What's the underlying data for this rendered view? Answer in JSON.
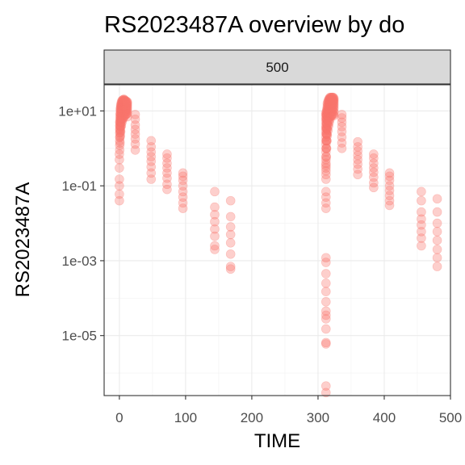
{
  "chart_data": {
    "type": "scatter",
    "title": "RS2023487A overview by do",
    "xlabel": "TIME",
    "ylabel": "RS2023487A",
    "facet_label": "500",
    "x_ticks": [
      0,
      100,
      200,
      300,
      400,
      500
    ],
    "x_tick_labels": [
      "0",
      "100",
      "200",
      "300",
      "400",
      "500"
    ],
    "xlim": [
      -23,
      500
    ],
    "y_scale": "log10",
    "y_ticks": [
      10,
      0.1,
      0.001,
      1e-05
    ],
    "y_tick_labels": [
      "1e+01",
      "1e-01",
      "1e-03",
      "1e-05"
    ],
    "ylim": [
      2.5e-07,
      50
    ],
    "point_color": "#f8766d",
    "point_alpha": 0.35,
    "grid": true,
    "legend": "none",
    "x": [
      0,
      0,
      0,
      0,
      0,
      0,
      0,
      0.5,
      0.5,
      0.5,
      0.5,
      0.5,
      0.5,
      0.5,
      0.5,
      1,
      1,
      1,
      1,
      1,
      1,
      1,
      1,
      1.5,
      1.5,
      1.5,
      1.5,
      1.5,
      1.5,
      1.5,
      1.5,
      1.5,
      2,
      2,
      2,
      2,
      2,
      2,
      2,
      2,
      2,
      2,
      3,
      3,
      3,
      3,
      3,
      3,
      3,
      3,
      3,
      3,
      4,
      4,
      4,
      4,
      4,
      4,
      4,
      4,
      4,
      4,
      5,
      5,
      5,
      5,
      5,
      5,
      5,
      5,
      5,
      5,
      6,
      6,
      6,
      6,
      6,
      6,
      6,
      6,
      6,
      6,
      7,
      7,
      7,
      7,
      7,
      7,
      7,
      7,
      7,
      7,
      8,
      8,
      8,
      8,
      8,
      8,
      8,
      8,
      8,
      9,
      9,
      9,
      9,
      9,
      9,
      9,
      9,
      10,
      10,
      10,
      10,
      10,
      10,
      10,
      10,
      11,
      11,
      11,
      11,
      11,
      11,
      11,
      12,
      12,
      12,
      12,
      12,
      12,
      12,
      12,
      24,
      24,
      24,
      24,
      24,
      24,
      24,
      24,
      48,
      48,
      48,
      48,
      48,
      48,
      48,
      48,
      72,
      72,
      72,
      72,
      72,
      72,
      72,
      72,
      96,
      96,
      96,
      96,
      96,
      96,
      96,
      96,
      144,
      144,
      144,
      144,
      144,
      144,
      144,
      144,
      168,
      168,
      168,
      168,
      168,
      168,
      168,
      168,
      312,
      312,
      312,
      312,
      312,
      312,
      312,
      312,
      312,
      312,
      312,
      312,
      312,
      312,
      312,
      312,
      312,
      312,
      312,
      312,
      312,
      312,
      312,
      312,
      312,
      312,
      312,
      312,
      312,
      312,
      312,
      312,
      312,
      312,
      312,
      312,
      312,
      312,
      312,
      312,
      312.5,
      312.5,
      312.5,
      312.5,
      312.5,
      312.5,
      312.5,
      312.5,
      313,
      313,
      313,
      313,
      313,
      313,
      313,
      313,
      313.5,
      313.5,
      313.5,
      313.5,
      313.5,
      313.5,
      313.5,
      313.5,
      314,
      314,
      314,
      314,
      314,
      314,
      314,
      314,
      314,
      315,
      315,
      315,
      315,
      315,
      315,
      315,
      315,
      315,
      316,
      316,
      316,
      316,
      316,
      316,
      316,
      316,
      316,
      317,
      317,
      317,
      317,
      317,
      317,
      317,
      317,
      317,
      318,
      318,
      318,
      318,
      318,
      318,
      318,
      318,
      318,
      319,
      319,
      319,
      319,
      319,
      319,
      319,
      319,
      320,
      320,
      320,
      320,
      320,
      320,
      320,
      320,
      321,
      321,
      321,
      321,
      321,
      321,
      321,
      321,
      322,
      322,
      322,
      322,
      322,
      322,
      322,
      322,
      323,
      323,
      323,
      323,
      323,
      323,
      323,
      323,
      324,
      324,
      324,
      324,
      324,
      324,
      324,
      324,
      336,
      336,
      336,
      336,
      336,
      336,
      336,
      336,
      360,
      360,
      360,
      360,
      360,
      360,
      360,
      360,
      384,
      384,
      384,
      384,
      384,
      384,
      384,
      384,
      408,
      408,
      408,
      408,
      408,
      408,
      408,
      408,
      456,
      456,
      456,
      456,
      456,
      456,
      456,
      456,
      480,
      480,
      480,
      480,
      480,
      480,
      480,
      480
    ],
    "y": [
      0.04,
      0.06,
      0.1,
      0.15,
      0.3,
      0.5,
      0.7,
      0.9,
      1.2,
      1.6,
      2,
      2.6,
      3.2,
      4,
      5,
      1.4,
      2,
      2.6,
      3.4,
      4.2,
      5.2,
      6.4,
      8,
      2.2,
      3,
      3.8,
      4.8,
      5.8,
      7,
      8.5,
      10,
      11.5,
      2.8,
      3.8,
      4.8,
      6,
      7.2,
      8.6,
      10,
      11.5,
      13,
      14.5,
      4,
      5.2,
      6.5,
      8,
      9.5,
      11,
      12.5,
      14,
      15.5,
      17,
      5,
      6.4,
      8,
      9.6,
      11.2,
      12.8,
      14.4,
      16,
      17.5,
      19,
      6,
      7.5,
      9,
      10.5,
      12,
      13.5,
      15,
      16.5,
      18,
      19.5,
      6.5,
      8,
      9.5,
      11,
      12.5,
      14,
      15.5,
      17,
      18.5,
      20,
      7,
      8.5,
      10,
      11.5,
      13,
      14.5,
      16,
      17.5,
      19,
      20.5,
      7.5,
      9,
      10.5,
      12,
      13.5,
      15,
      16.5,
      18,
      19.5,
      8,
      9.5,
      11,
      12.5,
      14,
      15.5,
      17,
      18.5,
      8,
      9.5,
      11,
      12.5,
      14,
      15.5,
      17,
      18.5,
      8.5,
      10,
      11.5,
      13,
      14.5,
      16,
      17.5,
      7,
      8.5,
      10,
      11.5,
      13,
      14.5,
      16,
      17.5,
      0.9,
      1.3,
      1.8,
      2.4,
      3.2,
      4.2,
      6,
      8,
      0.15,
      0.22,
      0.32,
      0.45,
      0.6,
      0.8,
      1.1,
      1.6,
      0.08,
      0.11,
      0.16,
      0.22,
      0.3,
      0.4,
      0.55,
      0.7,
      0.025,
      0.035,
      0.05,
      0.07,
      0.1,
      0.14,
      0.18,
      0.22,
      0.002,
      0.0025,
      0.0045,
      0.007,
      0.011,
      0.017,
      0.027,
      0.07,
      0.0006,
      0.0007,
      0.0015,
      0.003,
      0.005,
      0.008,
      0.015,
      0.04,
      3e-07,
      4.5e-07,
      6e-06,
      6.5e-06,
      1.5e-05,
      2.8e-05,
      3.5e-05,
      4.5e-05,
      8e-05,
      0.00015,
      0.00025,
      0.00045,
      0.0009,
      0.0012,
      0.025,
      0.035,
      0.05,
      0.07,
      0.15,
      0.2,
      0.25,
      0.3,
      0.35,
      0.4,
      0.5,
      0.6,
      0.8,
      1,
      1.3,
      1.6,
      2,
      2.5,
      3,
      3.5,
      4,
      5,
      6,
      7,
      8,
      9,
      0.6,
      1,
      1.6,
      2.4,
      3.4,
      4.5,
      6,
      8,
      1,
      1.6,
      2.4,
      3.4,
      4.6,
      6,
      7.8,
      10,
      1.6,
      2.4,
      3.4,
      4.6,
      6,
      7.6,
      9.4,
      11.5,
      2.2,
      3.2,
      4.4,
      5.8,
      7.4,
      9.2,
      11.2,
      13.4,
      15.8,
      3,
      4.2,
      5.6,
      7.2,
      9,
      11,
      13.2,
      15.6,
      18,
      4,
      5.4,
      7,
      8.8,
      10.8,
      13,
      15.4,
      17.8,
      20,
      5,
      6.6,
      8.4,
      10.4,
      12.6,
      15,
      17.4,
      19.6,
      21.5,
      6,
      7.8,
      9.8,
      12,
      14.4,
      16.8,
      19,
      21,
      23,
      7,
      9,
      11.2,
      13.6,
      16,
      18.4,
      20.5,
      22.5,
      7.5,
      9.5,
      11.8,
      14.2,
      16.6,
      18.8,
      21,
      23,
      8,
      10,
      12.2,
      14.6,
      17,
      19,
      21,
      23,
      8,
      10,
      12.2,
      14.6,
      17,
      19,
      21,
      23,
      8,
      10,
      12.2,
      14.6,
      17,
      19,
      21,
      23,
      7.5,
      9.5,
      11.5,
      13.5,
      15.5,
      17.5,
      19.5,
      21.5,
      1,
      1.4,
      2,
      2.8,
      3.8,
      5,
      6.5,
      8,
      0.2,
      0.28,
      0.38,
      0.5,
      0.65,
      0.85,
      1.1,
      1.5,
      0.09,
      0.12,
      0.17,
      0.23,
      0.3,
      0.4,
      0.55,
      0.7,
      0.03,
      0.04,
      0.055,
      0.075,
      0.1,
      0.14,
      0.18,
      0.22,
      0.0025,
      0.004,
      0.006,
      0.009,
      0.013,
      0.02,
      0.04,
      0.07,
      0.0007,
      0.0012,
      0.002,
      0.0035,
      0.006,
      0.01,
      0.02,
      0.045
    ]
  }
}
